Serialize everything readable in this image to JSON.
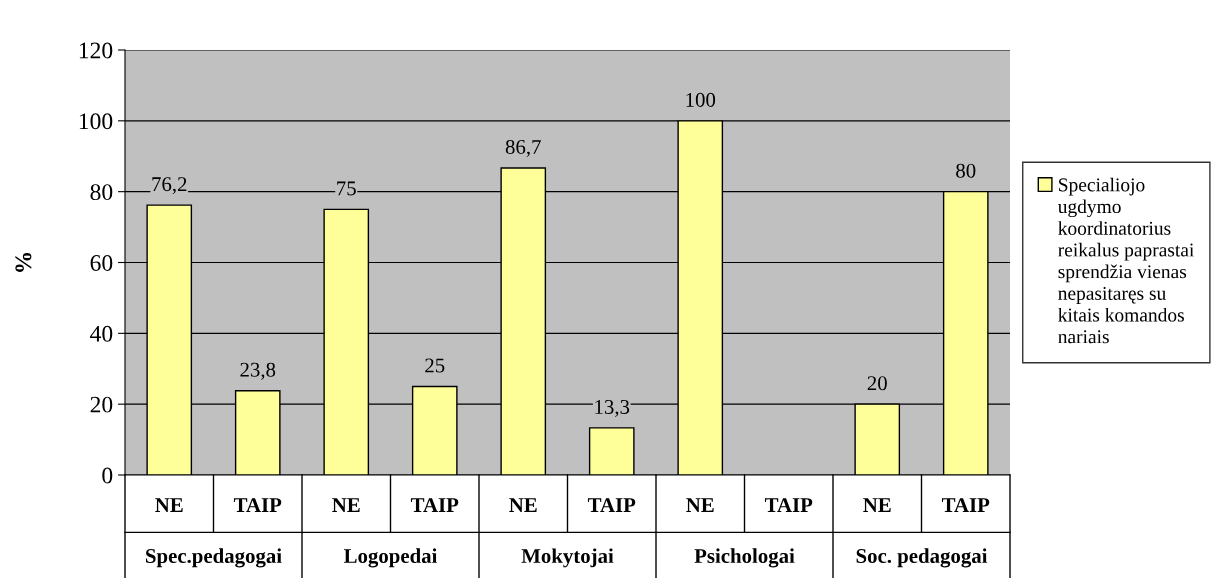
{
  "chart_data": {
    "type": "bar",
    "ylabel": "%",
    "categories": [
      "NE",
      "TAIP",
      "NE",
      "TAIP",
      "NE",
      "TAIP",
      "NE",
      "TAIP",
      "NE",
      "TAIP"
    ],
    "annotations": [
      "Spec.pedagogai",
      "Logopedai",
      "Mokytojai",
      "Psichologai",
      "Soc. pedagogai"
    ],
    "series": [
      {
        "name": "Specialiojo ugdymo koordinatorius reikalus paprastai sprendžia vienas nepasitaręs su kitais komandos nariais",
        "color": "#ffff99",
        "values": [
          76.2,
          23.8,
          75,
          25,
          86.7,
          13.3,
          100,
          null,
          20,
          80
        ],
        "value_labels": [
          "76,2",
          "23,8",
          "75",
          "25",
          "86,7",
          "13,3",
          "100",
          null,
          "20",
          "80"
        ]
      }
    ],
    "ylim": [
      0,
      120
    ],
    "yticks": [
      0,
      20,
      40,
      60,
      80,
      100,
      120
    ],
    "grid": "y",
    "legend": "right"
  }
}
